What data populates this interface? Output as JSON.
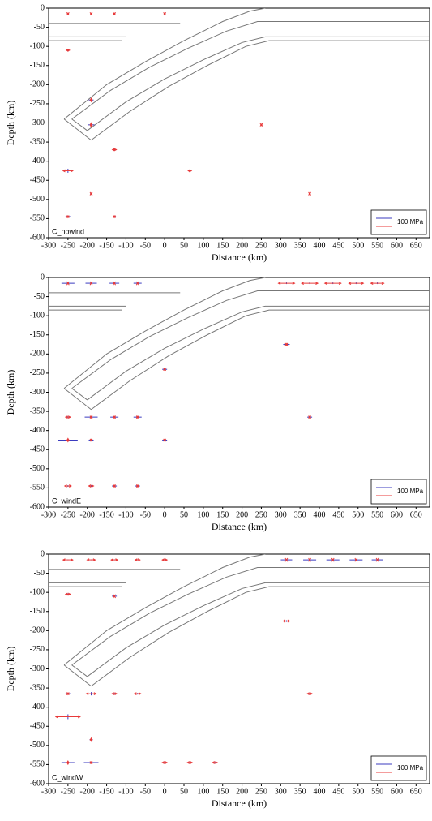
{
  "chart_data": [
    {
      "type": "stress-field",
      "label": "C_nowind",
      "xlabel": "Distance (km)",
      "ylabel": "Depth (km)",
      "legend_label": "100 MPa",
      "xlim": [
        -300,
        685
      ],
      "ylim": [
        -600,
        0
      ],
      "xticks": [
        -300,
        -250,
        -200,
        -150,
        -100,
        -50,
        0,
        50,
        100,
        150,
        200,
        250,
        300,
        350,
        400,
        450,
        500,
        550,
        600,
        650
      ],
      "yticks": [
        -600,
        -550,
        -500,
        -450,
        -400,
        -350,
        -300,
        -250,
        -200,
        -150,
        -100,
        -50,
        0
      ],
      "compression_color": "#3b3bbf",
      "tension_color": "#e83a3a",
      "points": {
        "x": [
          -250,
          -190,
          -130,
          0,
          -250,
          -190,
          -130,
          -250,
          -190,
          -130,
          65,
          250,
          375,
          -250,
          -190
        ],
        "y": [
          -15,
          -15,
          -15,
          -15,
          -110,
          -240,
          -370,
          -425,
          -305,
          -545,
          -425,
          -305,
          -485,
          -545,
          -485
        ],
        "compression": [
          10,
          10,
          10,
          10,
          8,
          30,
          8,
          25,
          40,
          20,
          8,
          8,
          8,
          30,
          12
        ],
        "tension": [
          8,
          8,
          8,
          8,
          20,
          20,
          25,
          60,
          25,
          12,
          20,
          8,
          8,
          12,
          8
        ]
      }
    },
    {
      "type": "stress-field",
      "label": "C_windE",
      "xlabel": "Distance (km)",
      "ylabel": "Depth (km)",
      "legend_label": "100 MPa",
      "xlim": [
        -300,
        685
      ],
      "ylim": [
        -600,
        0
      ],
      "xticks": [
        -300,
        -250,
        -200,
        -150,
        -100,
        -50,
        0,
        50,
        100,
        150,
        200,
        250,
        300,
        350,
        400,
        450,
        500,
        550,
        600,
        650
      ],
      "yticks": [
        -600,
        -550,
        -500,
        -450,
        -400,
        -350,
        -300,
        -250,
        -200,
        -150,
        -100,
        -50,
        0
      ],
      "compression_color": "#3b3bbf",
      "tension_color": "#e83a3a",
      "points": {
        "x": [
          -250,
          -190,
          -130,
          -70,
          315,
          375,
          435,
          495,
          550,
          -250,
          -190,
          -130,
          -70,
          -250,
          -250,
          -190,
          0,
          315,
          375,
          0,
          -190,
          -130,
          -70
        ],
        "y": [
          -15,
          -15,
          -15,
          -15,
          -15,
          -15,
          -15,
          -15,
          -15,
          -365,
          -365,
          -365,
          -365,
          -425,
          -545,
          -425,
          -240,
          -175,
          -365,
          -425,
          -545,
          -545,
          -545
        ],
        "compression": [
          80,
          70,
          60,
          50,
          10,
          10,
          10,
          10,
          10,
          10,
          80,
          50,
          50,
          120,
          10,
          30,
          30,
          40,
          30,
          30,
          10,
          30,
          30
        ],
        "tension": [
          5,
          5,
          5,
          5,
          100,
          100,
          100,
          90,
          80,
          30,
          10,
          10,
          10,
          20,
          40,
          10,
          10,
          10,
          10,
          10,
          30,
          10,
          10
        ]
      }
    },
    {
      "type": "stress-field",
      "label": "C_windW",
      "xlabel": "Distance (km)",
      "ylabel": "Depth (km)",
      "legend_label": "100 MPa",
      "xlim": [
        -300,
        685
      ],
      "ylim": [
        -600,
        0
      ],
      "xticks": [
        -300,
        -250,
        -200,
        -150,
        -100,
        -50,
        0,
        50,
        100,
        150,
        200,
        250,
        300,
        350,
        400,
        450,
        500,
        550,
        600,
        650
      ],
      "yticks": [
        -600,
        -550,
        -500,
        -450,
        -400,
        -350,
        -300,
        -250,
        -200,
        -150,
        -100,
        -50,
        0
      ],
      "compression_color": "#3b3bbf",
      "tension_color": "#e83a3a",
      "points": {
        "x": [
          -250,
          -190,
          -130,
          -70,
          0,
          315,
          375,
          435,
          495,
          550,
          -250,
          -190,
          -130,
          -70,
          -250,
          -250,
          -130,
          -190,
          -190,
          0,
          65,
          130,
          315,
          375,
          -250
        ],
        "y": [
          -15,
          -15,
          -15,
          -15,
          -15,
          -15,
          -15,
          -15,
          -15,
          -15,
          -105,
          -365,
          -365,
          -365,
          -425,
          -545,
          -110,
          -545,
          -485,
          -545,
          -545,
          -545,
          -175,
          -365,
          -365
        ],
        "compression": [
          5,
          5,
          5,
          5,
          5,
          70,
          80,
          80,
          80,
          70,
          10,
          20,
          10,
          10,
          30,
          80,
          30,
          90,
          20,
          10,
          10,
          10,
          10,
          10,
          30
        ],
        "tension": [
          60,
          50,
          40,
          30,
          30,
          5,
          5,
          5,
          5,
          5,
          30,
          60,
          30,
          40,
          150,
          20,
          5,
          10,
          20,
          30,
          30,
          30,
          40,
          30,
          10
        ]
      }
    }
  ],
  "slab_outline": [
    {
      "x": [
        -260,
        -150,
        -50,
        50,
        150,
        220,
        260
      ],
      "y": [
        -290,
        -200,
        -140,
        -85,
        -35,
        -8,
        0
      ]
    },
    {
      "x": [
        -240,
        -140,
        -40,
        60,
        160,
        240,
        685
      ],
      "y": [
        -290,
        -215,
        -155,
        -105,
        -60,
        -35,
        -35
      ]
    },
    {
      "x": [
        -200,
        -100,
        0,
        100,
        200,
        260,
        685
      ],
      "y": [
        -320,
        -245,
        -185,
        -135,
        -90,
        -75,
        -75
      ]
    },
    {
      "x": [
        -190,
        -90,
        10,
        110,
        210,
        270,
        685
      ],
      "y": [
        -345,
        -270,
        -205,
        -150,
        -100,
        -85,
        -85
      ]
    },
    {
      "x": [
        -260,
        -190
      ],
      "y": [
        -290,
        -345
      ]
    },
    {
      "x": [
        -240,
        -200
      ],
      "y": [
        -290,
        -320
      ]
    },
    {
      "x": [
        -300,
        40
      ],
      "y": [
        -40,
        -40
      ]
    },
    {
      "x": [
        -300,
        -100
      ],
      "y": [
        -75,
        -75
      ]
    },
    {
      "x": [
        -300,
        -110
      ],
      "y": [
        -85,
        -85
      ]
    }
  ]
}
